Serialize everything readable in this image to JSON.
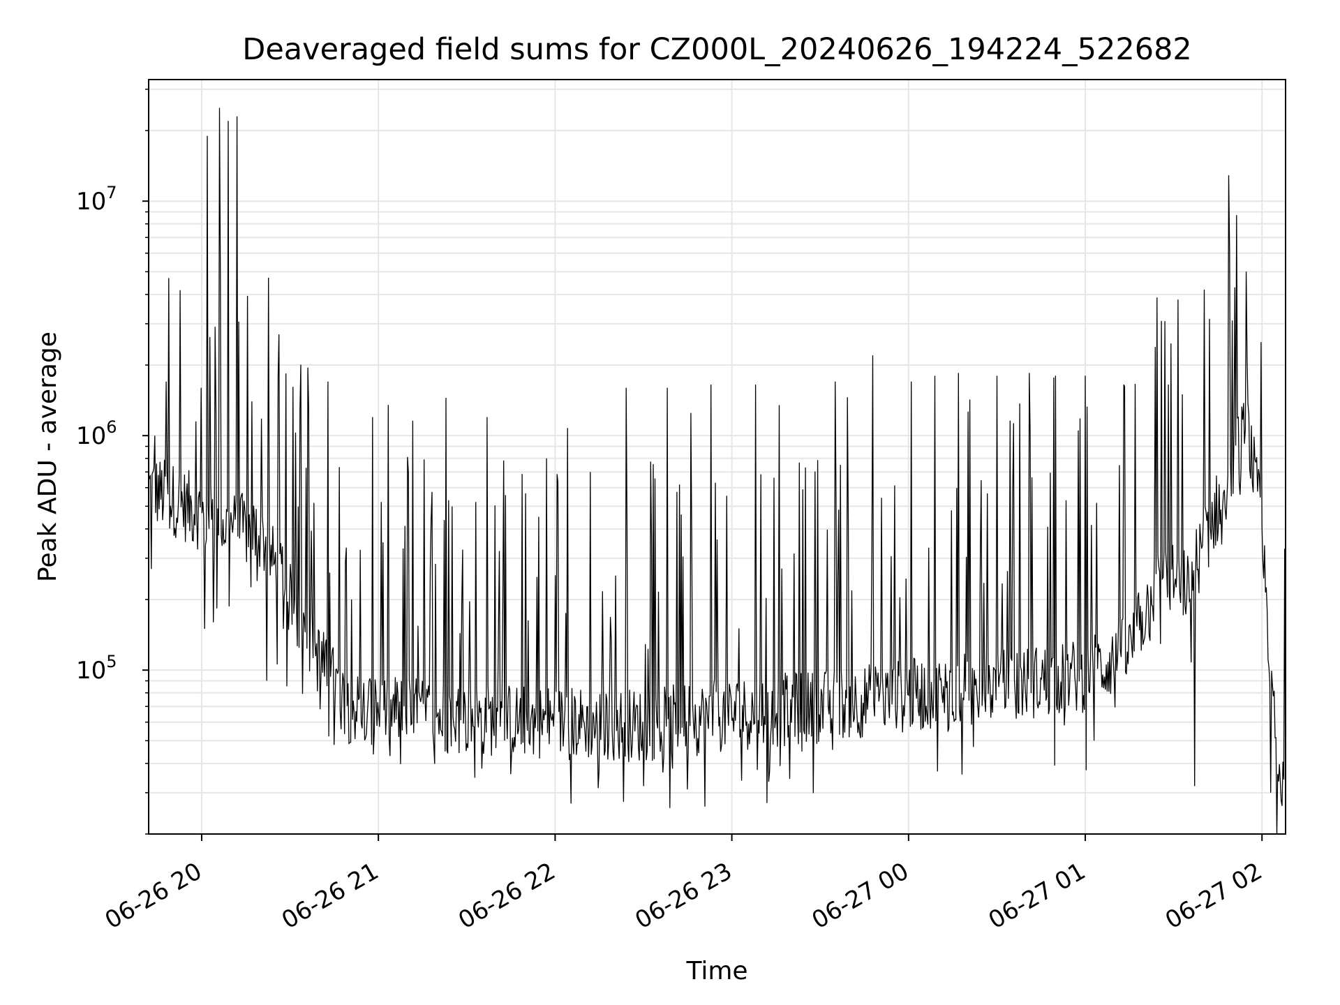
{
  "chart_data": {
    "type": "line",
    "title": "Deaveraged field sums for CZ000L_20240626_194224_522682",
    "xlabel": "Time",
    "ylabel": "Peak ADU - average",
    "yscale": "log",
    "ylim": [
      20000,
      33000000
    ],
    "xlim": [
      "2024-06-26 19:42",
      "2024-06-27 02:08"
    ],
    "grid": true,
    "x_ticks": [
      {
        "value": "2024-06-26 20:00",
        "label": "06-26 20"
      },
      {
        "value": "2024-06-26 21:00",
        "label": "06-26 21"
      },
      {
        "value": "2024-06-26 22:00",
        "label": "06-26 22"
      },
      {
        "value": "2024-06-26 23:00",
        "label": "06-26 23"
      },
      {
        "value": "2024-06-27 00:00",
        "label": "06-27 00"
      },
      {
        "value": "2024-06-27 01:00",
        "label": "06-27 01"
      },
      {
        "value": "2024-06-27 02:00",
        "label": "06-27 02"
      }
    ],
    "y_ticks": [
      {
        "value": 100000,
        "base": "10",
        "exp": "5"
      },
      {
        "value": 1000000,
        "base": "10",
        "exp": "6"
      },
      {
        "value": 10000000,
        "base": "10",
        "exp": "7"
      }
    ],
    "series": [
      {
        "color": "#000000",
        "baseline": [
          [
            "2024-06-26 19:42",
            600000
          ],
          [
            "2024-06-26 19:55",
            500000
          ],
          [
            "2024-06-26 20:05",
            420000
          ],
          [
            "2024-06-26 20:20",
            380000
          ],
          [
            "2024-06-26 20:30",
            200000
          ],
          [
            "2024-06-26 20:40",
            110000
          ],
          [
            "2024-06-26 20:50",
            70000
          ],
          [
            "2024-06-26 21:30",
            62000
          ],
          [
            "2024-06-26 22:00",
            60000
          ],
          [
            "2024-06-26 22:30",
            58000
          ],
          [
            "2024-06-26 23:00",
            65000
          ],
          [
            "2024-06-26 23:30",
            70000
          ],
          [
            "2024-06-27 00:00",
            78000
          ],
          [
            "2024-06-27 00:30",
            85000
          ],
          [
            "2024-06-27 01:00",
            95000
          ],
          [
            "2024-06-27 01:15",
            120000
          ],
          [
            "2024-06-27 01:25",
            250000
          ],
          [
            "2024-06-27 01:35",
            230000
          ],
          [
            "2024-06-27 01:45",
            500000
          ],
          [
            "2024-06-27 01:55",
            1100000
          ],
          [
            "2024-06-27 02:00",
            400000
          ],
          [
            "2024-06-27 02:05",
            40000
          ],
          [
            "2024-06-27 02:08",
            30000
          ]
        ],
        "peaks": [
          [
            "2024-06-26 19:44",
            1000000
          ],
          [
            "2024-06-26 19:48",
            1700000
          ],
          [
            "2024-06-26 19:58",
            1150000
          ],
          [
            "2024-06-26 20:02",
            19000000
          ],
          [
            "2024-06-26 20:06",
            25000000
          ],
          [
            "2024-06-26 20:09",
            22000000
          ],
          [
            "2024-06-26 20:12",
            23000000
          ],
          [
            "2024-06-26 20:17",
            1400000
          ],
          [
            "2024-06-26 20:26",
            1800000
          ],
          [
            "2024-06-26 20:36",
            1950000
          ],
          [
            "2024-06-26 20:43",
            1700000
          ],
          [
            "2024-06-26 20:58",
            1200000
          ],
          [
            "2024-06-26 21:23",
            1450000
          ],
          [
            "2024-06-26 21:37",
            1200000
          ],
          [
            "2024-06-26 21:57",
            800000
          ],
          [
            "2024-06-26 22:12",
            700000
          ],
          [
            "2024-06-26 22:24",
            1600000
          ],
          [
            "2024-06-26 22:38",
            1600000
          ],
          [
            "2024-06-26 22:46",
            1250000
          ],
          [
            "2024-06-26 22:53",
            1650000
          ],
          [
            "2024-06-26 23:08",
            1650000
          ],
          [
            "2024-06-26 23:16",
            1350000
          ],
          [
            "2024-06-26 23:35",
            1700000
          ],
          [
            "2024-06-26 23:48",
            2200000
          ],
          [
            "2024-06-27 00:01",
            1700000
          ],
          [
            "2024-06-27 00:09",
            1800000
          ],
          [
            "2024-06-27 00:17",
            1850000
          ],
          [
            "2024-06-27 00:30",
            1800000
          ],
          [
            "2024-06-27 00:41",
            1850000
          ],
          [
            "2024-06-27 00:50",
            1800000
          ],
          [
            "2024-06-27 01:00",
            1800000
          ],
          [
            "2024-06-27 01:13",
            1650000
          ],
          [
            "2024-06-27 01:33",
            1500000
          ],
          [
            "2024-06-27 01:50",
            3100000
          ],
          [
            "2024-06-27 01:55",
            2100000
          ]
        ],
        "dips": [
          [
            "2024-06-26 19:43",
            270000
          ],
          [
            "2024-06-26 20:01",
            150000
          ],
          [
            "2024-06-26 20:04",
            160000
          ],
          [
            "2024-06-26 20:22",
            90000
          ],
          [
            "2024-06-26 20:45",
            48000
          ],
          [
            "2024-06-26 21:04",
            43000
          ],
          [
            "2024-06-26 21:35",
            38000
          ],
          [
            "2024-06-26 21:45",
            36000
          ],
          [
            "2024-06-26 22:15",
            37000
          ],
          [
            "2024-06-26 22:30",
            32000
          ],
          [
            "2024-06-26 22:40",
            38000
          ],
          [
            "2024-06-27 00:22",
            47000
          ],
          [
            "2024-06-27 01:03",
            50000
          ],
          [
            "2024-06-27 01:37",
            32000
          ],
          [
            "2024-06-27 02:03",
            30000
          ]
        ]
      }
    ]
  }
}
